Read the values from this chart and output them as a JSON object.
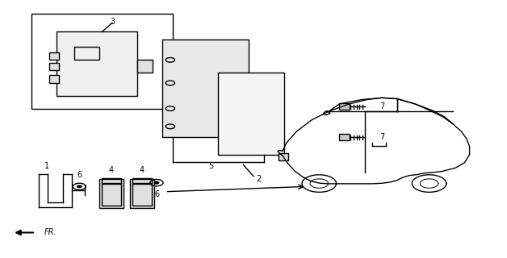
{
  "bg_color": "#ffffff",
  "fig_width": 6.28,
  "fig_height": 3.2,
  "dpi": 100,
  "line_color": "#000000",
  "line_width": 1.0
}
